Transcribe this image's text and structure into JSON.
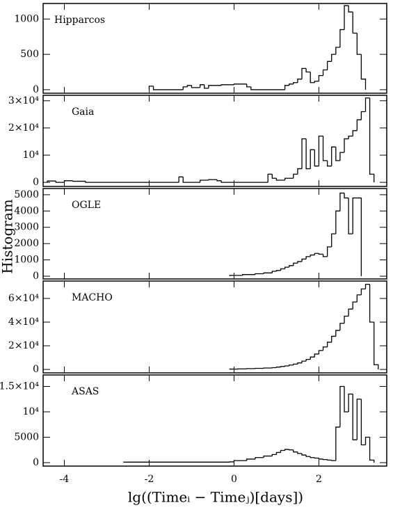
{
  "chart_data": [
    {
      "type": "histogram",
      "title": "Hipparcos",
      "color": "#000000",
      "bins": [
        -2.0,
        -1.9,
        -1.2,
        -1.1,
        -1.0,
        -0.8,
        -0.7,
        -0.6,
        -0.3,
        0.0,
        0.3,
        0.4,
        1.2,
        1.3,
        1.4,
        1.5,
        1.6,
        1.7,
        1.8,
        1.9,
        2.0,
        2.1,
        2.2,
        2.3,
        2.4,
        2.5,
        2.6,
        2.7,
        2.8,
        2.9,
        3.0,
        3.1
      ],
      "values": [
        50,
        0,
        40,
        60,
        30,
        70,
        20,
        60,
        70,
        80,
        40,
        0,
        60,
        80,
        100,
        150,
        300,
        250,
        100,
        120,
        200,
        280,
        400,
        500,
        600,
        850,
        1190,
        1100,
        800,
        500,
        150
      ],
      "xlim": [
        -4.5,
        3.6
      ],
      "xticks": [
        -4,
        -2,
        0,
        2
      ],
      "ylim": [
        -50,
        1220
      ],
      "yticks": [
        0,
        500,
        1000
      ]
    },
    {
      "type": "histogram",
      "title": "Gaia",
      "color": "#000000",
      "bins": [
        -4.4,
        -4.2,
        -4.0,
        -3.8,
        -3.5,
        -1.3,
        -1.2,
        -0.8,
        -0.6,
        -0.4,
        -0.3,
        0.8,
        0.9,
        1.0,
        1.2,
        1.4,
        1.5,
        1.6,
        1.7,
        1.8,
        1.9,
        2.0,
        2.1,
        2.2,
        2.3,
        2.4,
        2.5,
        2.6,
        2.7,
        2.8,
        2.9,
        3.0,
        3.1,
        3.2,
        3.3
      ],
      "values": [
        500,
        0,
        600,
        400,
        0,
        2000,
        0,
        800,
        1000,
        600,
        0,
        3000,
        1500,
        800,
        1500,
        3000,
        5000,
        16000,
        5000,
        12000,
        6000,
        17000,
        8000,
        6000,
        13000,
        8000,
        11000,
        16000,
        17000,
        19000,
        23000,
        26000,
        31000,
        3000
      ],
      "xlim": [
        -4.5,
        3.6
      ],
      "xticks": [
        -4,
        -2,
        0,
        2
      ],
      "ylim": [
        -1500,
        32000
      ],
      "yticks": [
        0,
        {
          "value": 10000,
          "label": "10⁴"
        },
        {
          "value": 20000,
          "label": "2×10⁴"
        },
        {
          "value": 30000,
          "label": "3×10⁴"
        }
      ]
    },
    {
      "type": "histogram",
      "title": "OGLE",
      "color": "#000000",
      "y_label": "Histogram",
      "bins": [
        -0.1,
        0.2,
        0.5,
        0.7,
        0.9,
        1.0,
        1.1,
        1.2,
        1.3,
        1.4,
        1.5,
        1.6,
        1.7,
        1.8,
        1.9,
        2.0,
        2.1,
        2.2,
        2.3,
        2.4,
        2.5,
        2.6,
        2.7,
        2.8,
        2.9,
        3.0
      ],
      "values": [
        50,
        100,
        150,
        200,
        300,
        350,
        450,
        550,
        650,
        800,
        900,
        1050,
        1200,
        1300,
        1400,
        1350,
        1200,
        1800,
        2600,
        4000,
        5100,
        4800,
        2600,
        4800,
        4800
      ],
      "xlim": [
        -4.5,
        3.6
      ],
      "xticks": [
        -4,
        -2,
        0,
        2
      ],
      "ylim": [
        -170,
        5380
      ],
      "yticks": [
        0,
        1000,
        2000,
        3000,
        4000,
        5000
      ]
    },
    {
      "type": "histogram",
      "title": "MACHO",
      "color": "#000000",
      "bins": [
        -0.1,
        0.1,
        0.3,
        0.5,
        0.7,
        0.9,
        1.0,
        1.1,
        1.2,
        1.3,
        1.4,
        1.5,
        1.6,
        1.7,
        1.8,
        1.9,
        2.0,
        2.1,
        2.2,
        2.3,
        2.4,
        2.5,
        2.6,
        2.7,
        2.8,
        2.9,
        3.0,
        3.1,
        3.2,
        3.3,
        3.4
      ],
      "values": [
        300,
        500,
        700,
        900,
        1200,
        1500,
        2000,
        2500,
        3000,
        3700,
        4500,
        5500,
        7000,
        8500,
        10500,
        13000,
        16000,
        19000,
        23000,
        28000,
        33000,
        39000,
        45000,
        51000,
        57000,
        63000,
        68000,
        72000,
        40000,
        4000
      ],
      "xlim": [
        -4.5,
        3.6
      ],
      "xticks": [
        -4,
        -2,
        0,
        2
      ],
      "ylim": [
        -2900,
        74700
      ],
      "yticks": [
        0,
        {
          "value": 20000,
          "label": "2×10⁴"
        },
        {
          "value": 40000,
          "label": "4×10⁴"
        },
        {
          "value": 60000,
          "label": "6×10⁴"
        }
      ]
    },
    {
      "type": "histogram",
      "title": "ASAS",
      "color": "#000000",
      "x_label": "lg((Timeᵢ − Timeⱼ)[days])",
      "bins": [
        -2.6,
        -0.1,
        0.0,
        0.3,
        0.5,
        0.7,
        0.9,
        1.0,
        1.1,
        1.2,
        1.3,
        1.4,
        1.5,
        1.6,
        1.7,
        1.8,
        1.9,
        2.0,
        2.1,
        2.2,
        2.3,
        2.4,
        2.5,
        2.6,
        2.7,
        2.8,
        2.9,
        3.0,
        3.1,
        3.2,
        3.3
      ],
      "values": [
        100,
        150,
        400,
        700,
        1000,
        1300,
        1600,
        2000,
        2400,
        2600,
        2500,
        2100,
        1800,
        1500,
        1200,
        1000,
        900,
        700,
        600,
        500,
        400,
        7000,
        15000,
        10000,
        13500,
        4500,
        12500,
        3500,
        5000,
        500
      ],
      "xlim": [
        -4.5,
        3.6
      ],
      "xticks": [
        -4,
        -2,
        0,
        2
      ],
      "ylim": [
        -680,
        17260
      ],
      "yticks": [
        0,
        5000,
        {
          "value": 10000,
          "label": "10⁴"
        },
        {
          "value": 15000,
          "label": "1.5×10⁴"
        }
      ]
    }
  ]
}
